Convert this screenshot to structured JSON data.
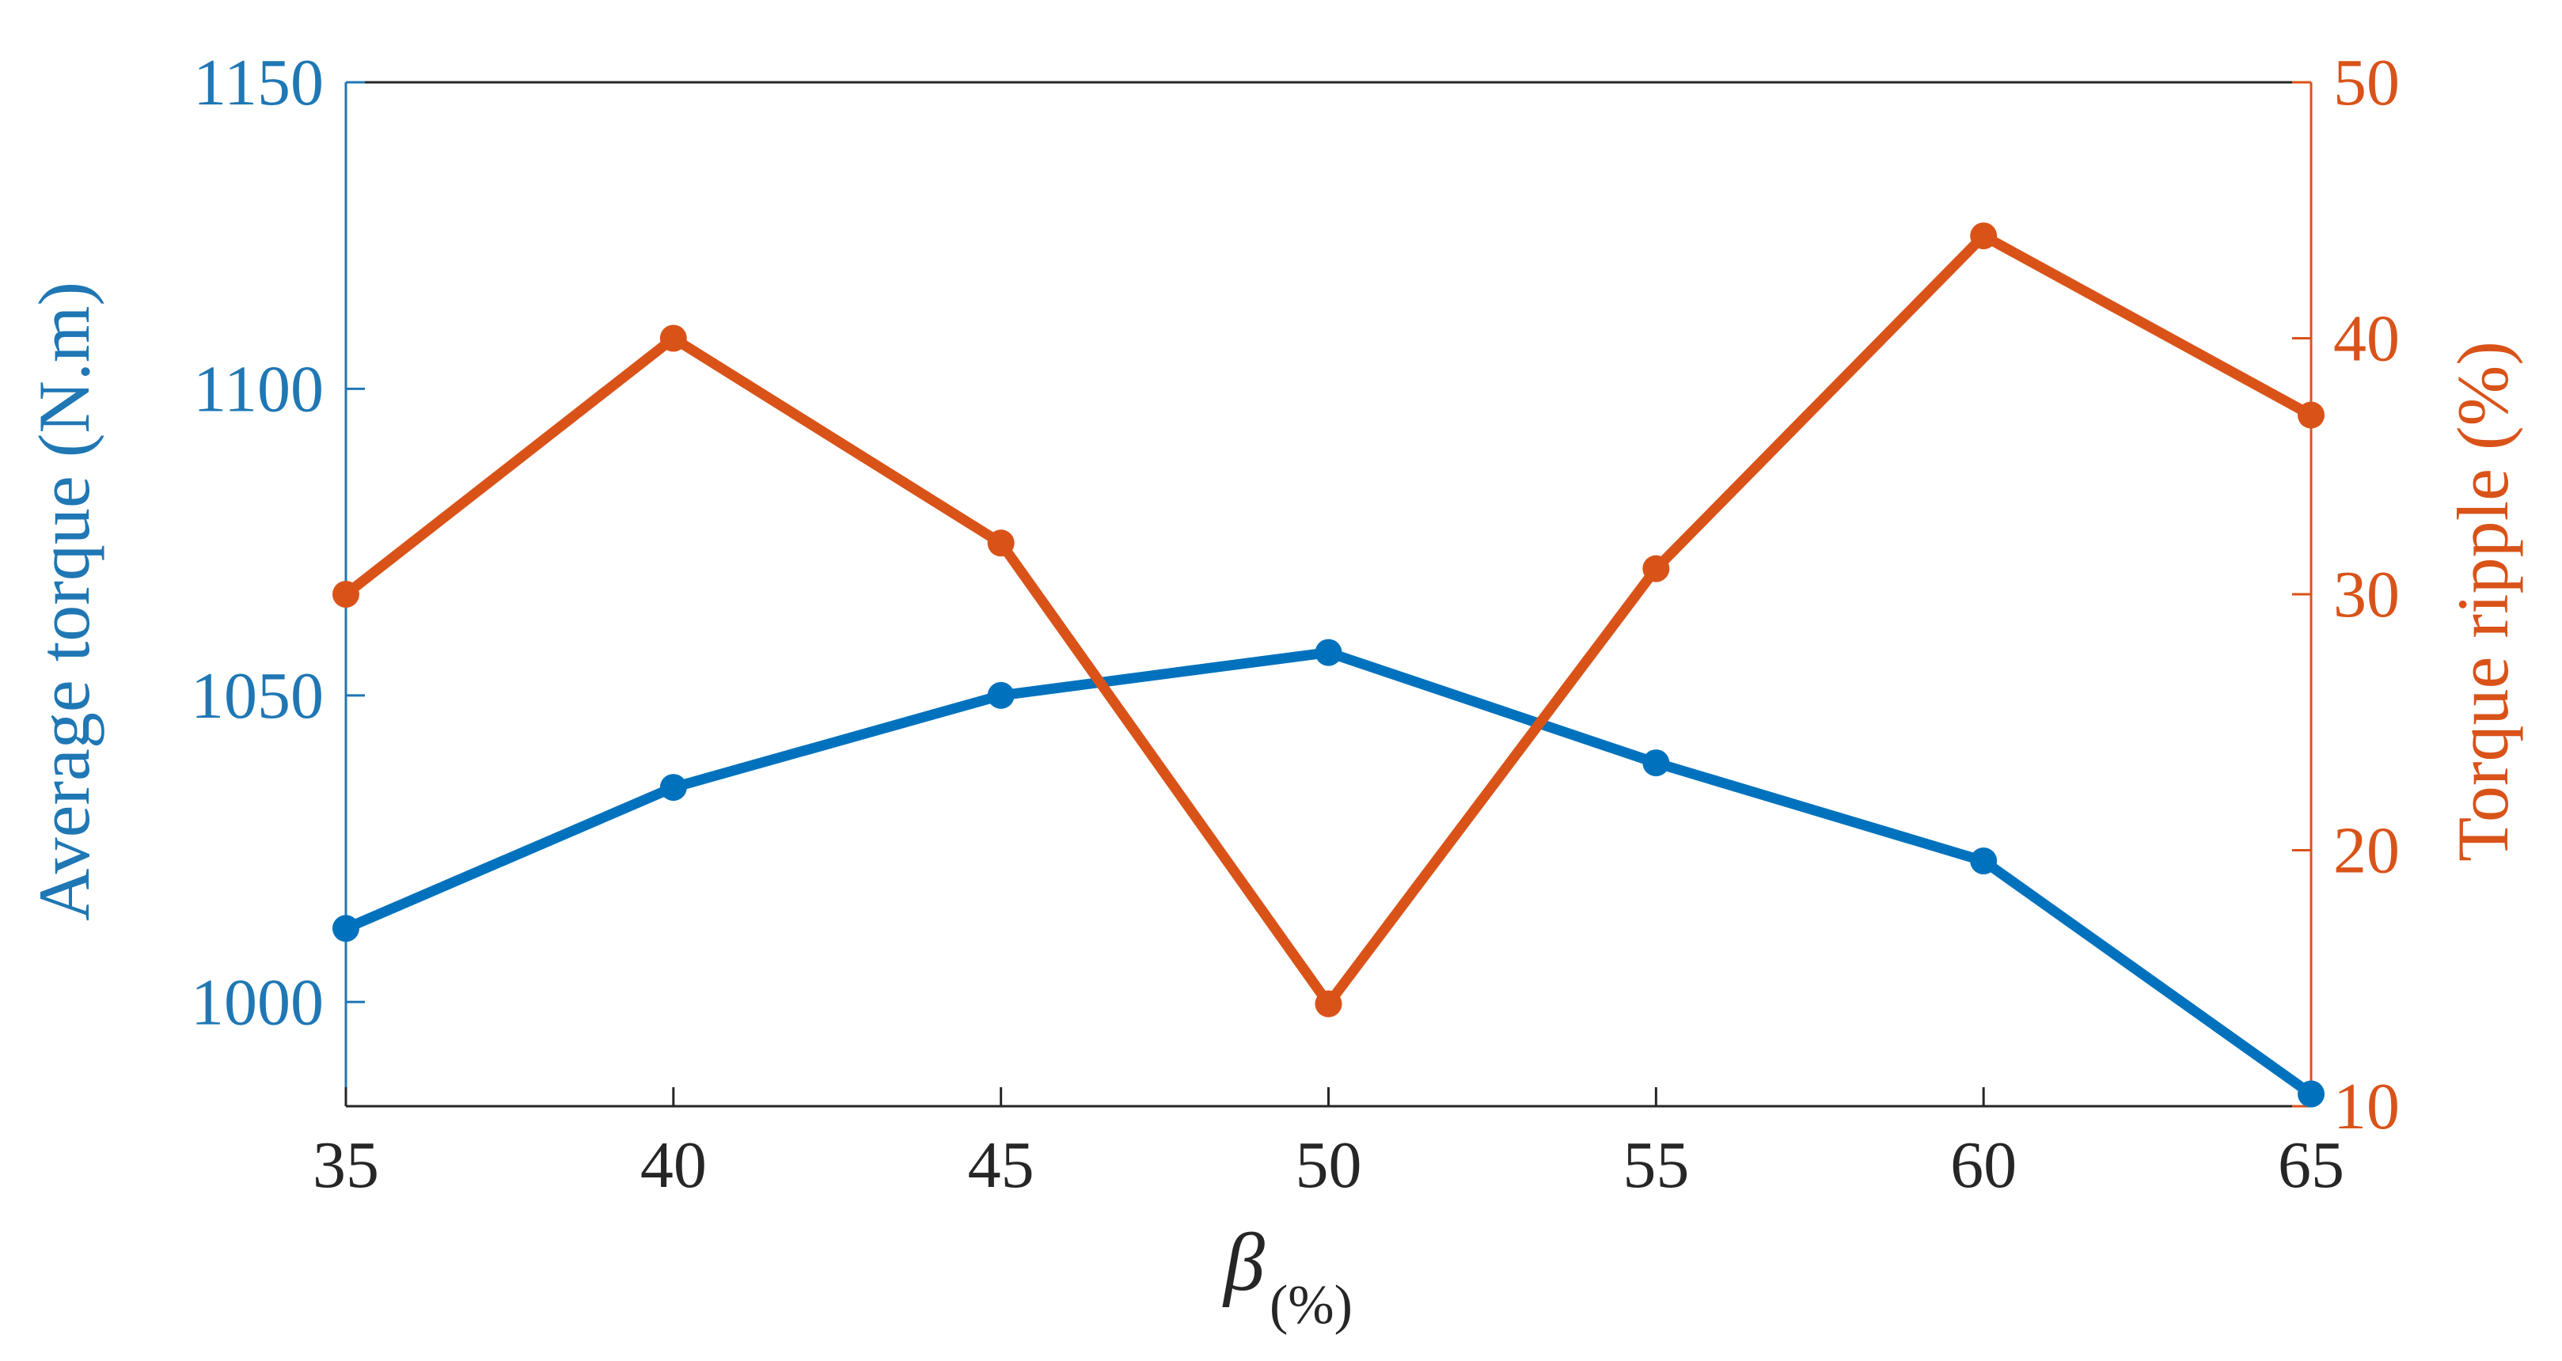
{
  "chart_data": {
    "type": "line",
    "x": [
      35,
      40,
      45,
      50,
      55,
      60,
      65
    ],
    "xlim": [
      35,
      65
    ],
    "x_ticks": [
      "35",
      "40",
      "45",
      "50",
      "55",
      "60",
      "65"
    ],
    "xlabel": {
      "symbol": "β",
      "subscript": "(%)"
    },
    "left_axis": {
      "label": "Average torque (N.m)",
      "ylim": [
        983,
        1150
      ],
      "ticks": [
        "1000",
        "1050",
        "1100",
        "1150"
      ],
      "color": "#1f77b4"
    },
    "right_axis": {
      "label": "Torque ripple  (%)",
      "ylim": [
        10,
        50
      ],
      "ticks": [
        "10",
        "20",
        "30",
        "40",
        "50"
      ],
      "color": "#d95319"
    },
    "series": [
      {
        "axis": "left",
        "color": "#0072bd",
        "values": [
          1012,
          1035,
          1050,
          1057,
          1039,
          1023,
          985
        ]
      },
      {
        "axis": "right",
        "color": "#d95319",
        "values": [
          30,
          40,
          32,
          14,
          31,
          44,
          37
        ]
      }
    ],
    "grid": false,
    "legend": "none"
  }
}
